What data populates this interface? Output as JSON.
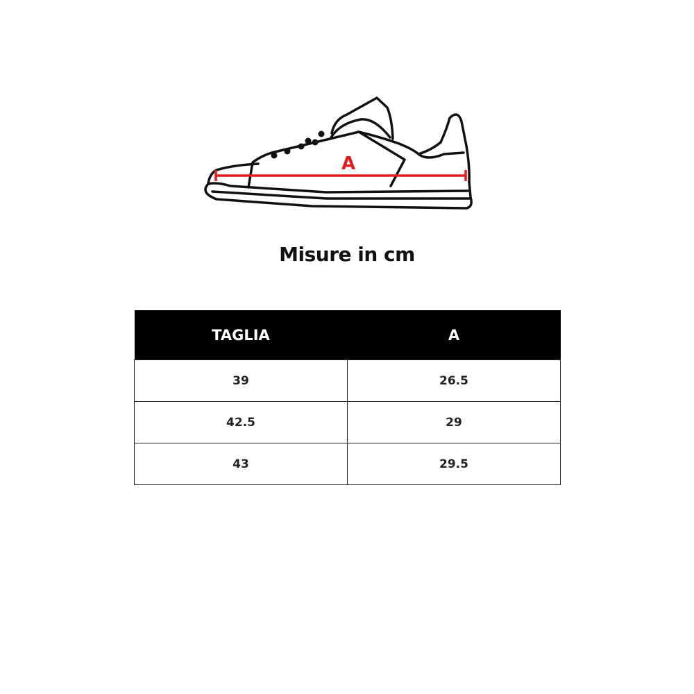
{
  "diagram": {
    "measure_label": "A",
    "measure_color": "#e02020"
  },
  "title": "Misure in cm",
  "table": {
    "headers": [
      "TAGLIA",
      "A"
    ],
    "rows": [
      [
        "39",
        "26.5"
      ],
      [
        "42.5",
        "29"
      ],
      [
        "43",
        "29.5"
      ]
    ]
  }
}
